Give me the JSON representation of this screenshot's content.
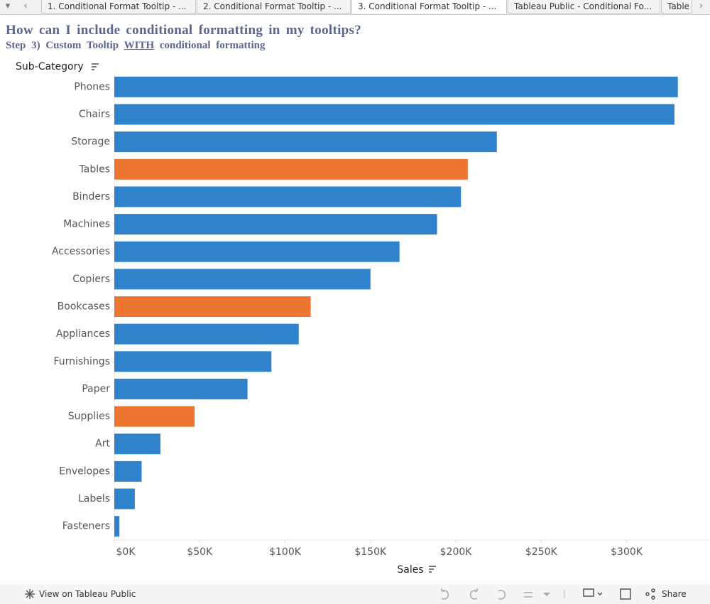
{
  "tabs": [
    "1. Conditional Format Tooltip - ...",
    "2. Conditional Format Tooltip - ...",
    "3. Conditional Format Tooltip - ...",
    "Tableau Public - Conditional Fo...",
    "Table"
  ],
  "chart_data": {
    "type": "bar",
    "orientation": "horizontal",
    "title": "How can I include conditional formatting in my tooltips?",
    "subtitle": {
      "prefix": "Step 3) Custom Tooltip",
      "emphasis": "WITH",
      "suffix": "conditional formatting"
    },
    "y_label": "Sub-Category",
    "x_label": "Sales",
    "categories": [
      "Phones",
      "Chairs",
      "Storage",
      "Tables",
      "Binders",
      "Machines",
      "Accessories",
      "Copiers",
      "Bookcases",
      "Appliances",
      "Furnishings",
      "Paper",
      "Supplies",
      "Art",
      "Envelopes",
      "Labels",
      "Fasteners"
    ],
    "values": [
      330000,
      328000,
      224000,
      207000,
      203000,
      189000,
      167000,
      150000,
      115000,
      108000,
      92000,
      78000,
      47000,
      27000,
      16000,
      12000,
      3000
    ],
    "colors": [
      "#3083cb",
      "#3083cb",
      "#3083cb",
      "#ed7532",
      "#3083cb",
      "#3083cb",
      "#3083cb",
      "#3083cb",
      "#ed7532",
      "#3083cb",
      "#3083cb",
      "#3083cb",
      "#ed7532",
      "#3083cb",
      "#3083cb",
      "#3083cb",
      "#3083cb"
    ],
    "xlim": [
      0,
      348000
    ],
    "xticks": [
      {
        "value": 0,
        "label": "$0K"
      },
      {
        "value": 50000,
        "label": "$50K"
      },
      {
        "value": 100000,
        "label": "$100K"
      },
      {
        "value": 150000,
        "label": "$150K"
      },
      {
        "value": 200000,
        "label": "$200K"
      },
      {
        "value": 250000,
        "label": "$250K"
      },
      {
        "value": 300000,
        "label": "$300K"
      }
    ],
    "grid": false
  },
  "footer": {
    "view": "View on Tableau Public",
    "share": "Share"
  }
}
